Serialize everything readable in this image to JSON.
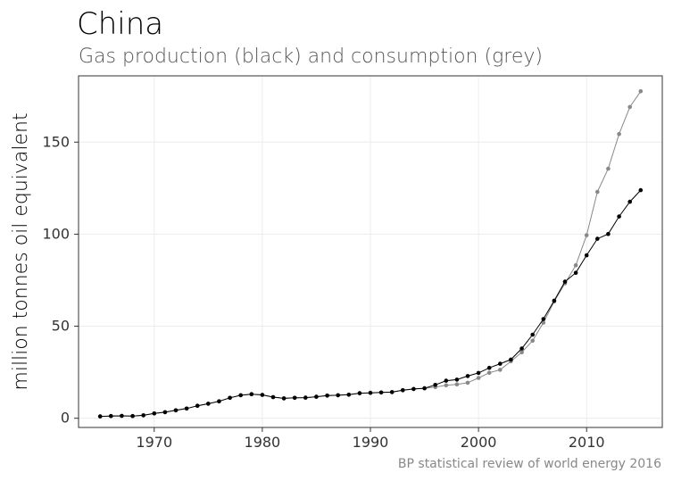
{
  "title": "China",
  "subtitle": "Gas production (black) and consumption (grey)",
  "caption": "BP statistical review of world energy 2016",
  "colors": {
    "production": "#000000",
    "consumption": "#888888"
  },
  "chart_data": {
    "type": "line",
    "title": "China",
    "subtitle": "Gas production (black) and consumption (grey)",
    "xlabel": "",
    "ylabel": "million tonnes oil equivalent",
    "xlim": [
      1963,
      2017
    ],
    "ylim": [
      -5,
      186
    ],
    "xticks": [
      1970,
      1980,
      1990,
      2000,
      2010
    ],
    "yticks": [
      0,
      50,
      100,
      150
    ],
    "grid": true,
    "legend": "none",
    "x": [
      1965,
      1966,
      1967,
      1968,
      1969,
      1970,
      1971,
      1972,
      1973,
      1974,
      1975,
      1976,
      1977,
      1978,
      1979,
      1980,
      1981,
      1982,
      1983,
      1984,
      1985,
      1986,
      1987,
      1988,
      1989,
      1990,
      1991,
      1992,
      1993,
      1994,
      1995,
      1996,
      1997,
      1998,
      1999,
      2000,
      2001,
      2002,
      2003,
      2004,
      2005,
      2006,
      2007,
      2008,
      2009,
      2010,
      2011,
      2012,
      2013,
      2014,
      2015
    ],
    "series": [
      {
        "name": "production",
        "color": "#000000",
        "values": [
          1.0,
          1.2,
          1.3,
          1.2,
          1.6,
          2.6,
          3.3,
          4.3,
          5.3,
          6.8,
          7.9,
          9.2,
          11.1,
          12.5,
          13.1,
          12.7,
          11.5,
          10.8,
          11.1,
          11.2,
          11.7,
          12.3,
          12.5,
          12.8,
          13.6,
          13.8,
          14.0,
          14.2,
          15.2,
          15.9,
          16.3,
          18.1,
          20.4,
          21.0,
          22.9,
          24.6,
          27.4,
          29.6,
          31.9,
          37.9,
          45.4,
          53.9,
          63.9,
          74.2,
          79.0,
          88.5,
          97.5,
          100.1,
          109.6,
          117.6,
          123.9
        ]
      },
      {
        "name": "consumption",
        "color": "#888888",
        "values": [
          1.0,
          1.2,
          1.3,
          1.2,
          1.6,
          2.6,
          3.3,
          4.3,
          5.3,
          6.8,
          7.9,
          9.2,
          11.1,
          12.5,
          13.1,
          12.7,
          11.5,
          10.8,
          11.1,
          11.2,
          11.7,
          12.3,
          12.5,
          12.8,
          13.6,
          13.8,
          14.0,
          14.2,
          15.2,
          15.9,
          16.3,
          16.9,
          17.9,
          18.4,
          19.3,
          21.9,
          24.7,
          26.3,
          30.9,
          35.8,
          42.1,
          51.9,
          63.4,
          73.3,
          83.1,
          99.4,
          123.0,
          135.6,
          154.4,
          169.1,
          177.6
        ]
      }
    ]
  }
}
